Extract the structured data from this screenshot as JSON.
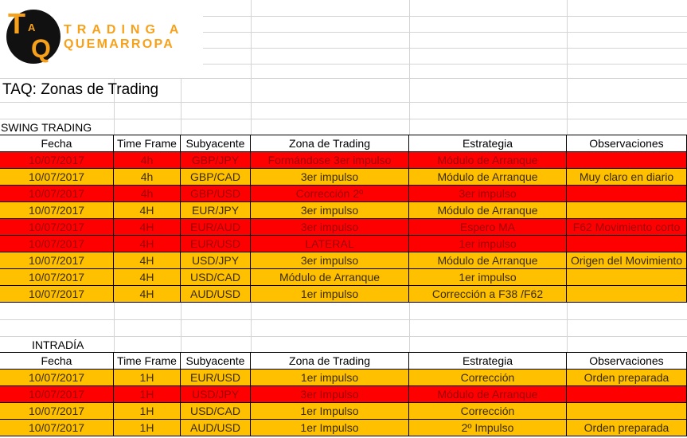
{
  "logo": {
    "mark_top": "T",
    "mark_small": "A",
    "mark_bottom": "Q",
    "line1": "TRADING A",
    "line2": "QUEMARROPA",
    "brand_color": "#f7a11a"
  },
  "title": "TAQ: Zonas de Trading",
  "colors": {
    "red": "#ff0000",
    "orange": "#ffc000"
  },
  "columns": [
    "Fecha",
    "Time Frame",
    "Subyacente",
    "Zona de Trading",
    "Estrategia",
    "Observaciones"
  ],
  "swing": {
    "label": "SWING TRADING",
    "rows": [
      {
        "color": "red",
        "cells": [
          "10/07/2017",
          "4h",
          "GBP/JPY",
          "Formándose 3er impulso",
          "Módulo de Arranque",
          ""
        ]
      },
      {
        "color": "orange",
        "cells": [
          "10/07/2017",
          "4h",
          "GBP/CAD",
          "3er impulso",
          "Módulo de Arranque",
          "Muy claro en diario"
        ]
      },
      {
        "color": "red",
        "cells": [
          "10/07/2017",
          "4h",
          "GBP/USD",
          "Corrección 2º",
          "3er impulso",
          ""
        ]
      },
      {
        "color": "orange",
        "cells": [
          "10/07/2017",
          "4H",
          "EUR/JPY",
          "3er impulso",
          "Módulo de Arranque",
          ""
        ]
      },
      {
        "color": "red",
        "cells": [
          "10/07/2017",
          "4H",
          "EUR/AUD",
          "3er impulso",
          "Espero MA",
          "F62 Movimiento corto"
        ]
      },
      {
        "color": "red",
        "cells": [
          "10/07/2017",
          "4H",
          "EUR/USD",
          "LATERAL",
          "1er impulso",
          ""
        ]
      },
      {
        "color": "orange",
        "cells": [
          "10/07/2017",
          "4H",
          "USD/JPY",
          "3er impulso",
          "Módulo de Arranque",
          "Origen del Movimiento"
        ]
      },
      {
        "color": "orange",
        "cells": [
          "10/07/2017",
          "4H",
          "USD/CAD",
          "Módulo de Arranque",
          "1er impulso",
          ""
        ]
      },
      {
        "color": "orange",
        "cells": [
          "10/07/2017",
          "4H",
          "AUD/USD",
          "1er impulso",
          "Corrección a F38 /F62",
          ""
        ]
      }
    ]
  },
  "intraday": {
    "label": "INTRADÍA",
    "rows": [
      {
        "color": "orange",
        "cells": [
          "10/07/2017",
          "1H",
          "EUR/USD",
          "1er impulso",
          "Corrección",
          "Orden preparada"
        ]
      },
      {
        "color": "red",
        "cells": [
          "10/07/2017",
          "1H",
          "USD/JPY",
          "3er Impulso",
          "Módulo de Arranque",
          ""
        ]
      },
      {
        "color": "orange",
        "cells": [
          "10/07/2017",
          "1H",
          "USD/CAD",
          "1er Impulso",
          "Corrección",
          ""
        ]
      },
      {
        "color": "orange",
        "cells": [
          "10/07/2017",
          "1H",
          "AUD/USD",
          "1er Impulso",
          "2º Impulso",
          "Orden preparada"
        ]
      }
    ]
  }
}
